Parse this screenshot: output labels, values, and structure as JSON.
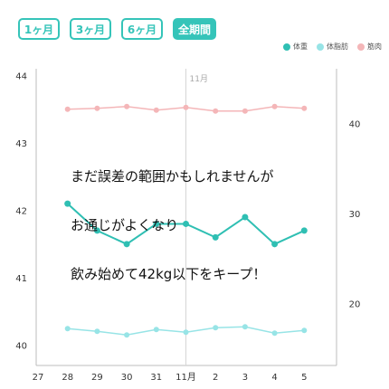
{
  "tabs": [
    {
      "label": "1ヶ月",
      "active": false
    },
    {
      "label": "3ヶ月",
      "active": false
    },
    {
      "label": "6ヶ月",
      "active": false
    },
    {
      "label": "全期間",
      "active": true
    }
  ],
  "legend": [
    {
      "label": "体重",
      "color": "#2fbfb3"
    },
    {
      "label": "体脂肪",
      "color": "#97e4e6"
    },
    {
      "label": "筋肉",
      "color": "#f4b6b8"
    }
  ],
  "overlay_text": [
    "まだ誤差の範囲かもしれませんが",
    "お通じがよくなり",
    "飲み始めて42kg以下をキープ！"
  ],
  "chart_data": {
    "type": "line",
    "month_marker": "11月",
    "categories": [
      "27",
      "28",
      "29",
      "30",
      "31",
      "11月",
      "2",
      "3",
      "4",
      "5"
    ],
    "y_left": {
      "ticks": [
        40,
        41,
        42,
        43,
        44
      ],
      "range": [
        39.7,
        44.1
      ]
    },
    "y_right": {
      "ticks": [
        20,
        30,
        40
      ],
      "range": [
        13.1,
        46.1
      ]
    },
    "series": [
      {
        "name": "体重",
        "axis": "left",
        "color": "#2fbfb3",
        "x": [
          "28",
          "29",
          "30",
          "31",
          "11月",
          "2",
          "3",
          "4",
          "5"
        ],
        "values": [
          42.1,
          41.7,
          41.5,
          41.8,
          41.8,
          41.6,
          41.9,
          41.5,
          41.7
        ]
      },
      {
        "name": "体脂肪",
        "axis": "right",
        "color": "#97e4e6",
        "x": [
          "28",
          "29",
          "30",
          "31",
          "11月",
          "2",
          "3",
          "4",
          "5"
        ],
        "values": [
          17.2,
          16.9,
          16.5,
          17.1,
          16.8,
          17.3,
          17.4,
          16.7,
          17.0
        ]
      },
      {
        "name": "筋肉",
        "axis": "right",
        "color": "#f4b6b8",
        "x": [
          "28",
          "29",
          "30",
          "31",
          "11月",
          "2",
          "3",
          "4",
          "5"
        ],
        "values": [
          41.6,
          41.7,
          41.9,
          41.5,
          41.8,
          41.4,
          41.4,
          41.9,
          41.7
        ]
      }
    ]
  }
}
